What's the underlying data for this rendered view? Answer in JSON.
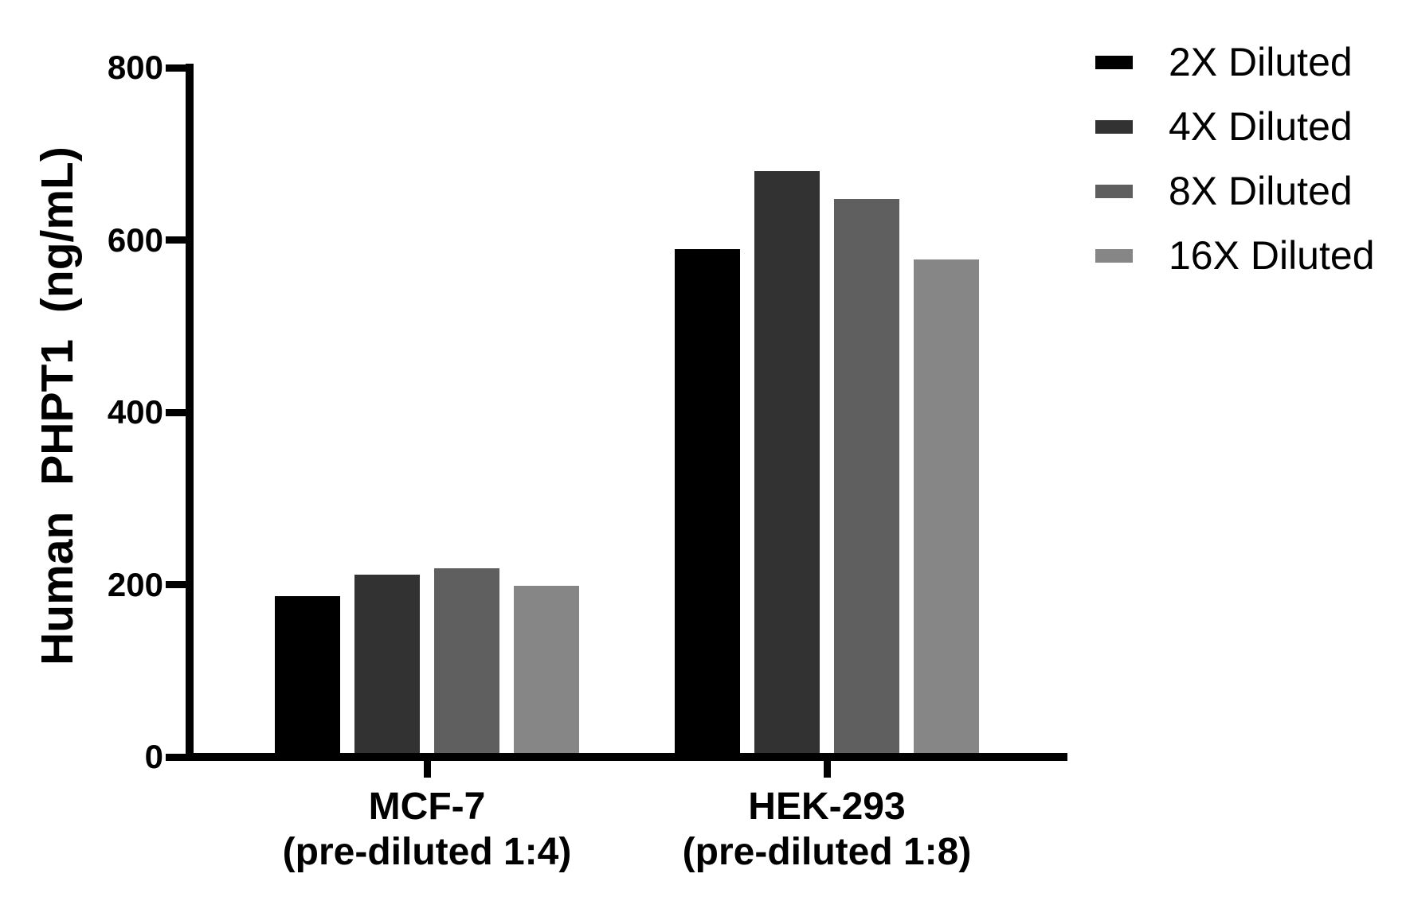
{
  "figure": {
    "background": "#ffffff",
    "text_color": "#000000",
    "axis_color": "#000000"
  },
  "chart_data": {
    "type": "bar",
    "title": "",
    "xlabel": "",
    "ylabel": "Human PHPT1 (ng/mL)",
    "ylim": [
      0,
      800
    ],
    "yticks": [
      0,
      200,
      400,
      600,
      800
    ],
    "grid": false,
    "legend_position": "top-right",
    "categories": [
      "MCF-7\n(pre-diluted 1:4)",
      "HEK-293\n(pre-diluted 1:8)"
    ],
    "series": [
      {
        "name": "2X Diluted",
        "color": "#000000",
        "values": [
          187,
          589
        ]
      },
      {
        "name": "4X Diluted",
        "color": "#323232",
        "values": [
          212,
          680
        ]
      },
      {
        "name": "8X Diluted",
        "color": "#5f5f5f",
        "values": [
          219,
          648
        ]
      },
      {
        "name": "16X Diluted",
        "color": "#868686",
        "values": [
          199,
          577
        ]
      }
    ]
  }
}
